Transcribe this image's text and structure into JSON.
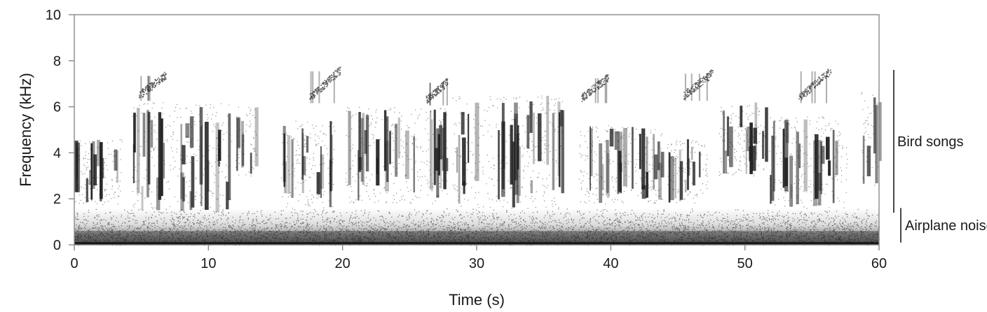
{
  "chart_data": {
    "type": "spectrogram",
    "title": "",
    "xlabel": "Time (s)",
    "ylabel": "Frequency (kHz)",
    "xlim": [
      0,
      60
    ],
    "ylim": [
      0,
      10
    ],
    "x_ticks": [
      0,
      10,
      20,
      30,
      40,
      50,
      60
    ],
    "y_ticks": [
      0,
      2,
      4,
      6,
      8,
      10
    ],
    "grid": false,
    "colormap": "grayscale (white = low energy, black = high energy)",
    "colors": {
      "ink": "#1a1a1a",
      "background": "#ffffff",
      "frame": "#888888"
    },
    "annotations": [
      {
        "label": "Bird songs",
        "y_range_khz": [
          1.4,
          7.6
        ]
      },
      {
        "label": "Airplane noise",
        "y_range_khz": [
          0.1,
          1.6
        ]
      }
    ],
    "airplane_noise": {
      "band_khz": [
        0,
        1.6
      ],
      "strongest_khz": [
        0,
        0.6
      ],
      "solid_floor_khz": [
        0,
        0.12
      ]
    },
    "song_bouts": [
      {
        "t_start": 0.0,
        "t_end": 3.6,
        "freq_khz": [
          1.7,
          4.6
        ]
      },
      {
        "t_start": 4.3,
        "t_end": 11.8,
        "freq_khz": [
          1.4,
          6.2
        ]
      },
      {
        "t_start": 12.0,
        "t_end": 13.6,
        "freq_khz": [
          3.0,
          6.0
        ]
      },
      {
        "t_start": 15.4,
        "t_end": 19.4,
        "freq_khz": [
          1.6,
          5.4
        ]
      },
      {
        "t_start": 20.2,
        "t_end": 27.8,
        "freq_khz": [
          1.8,
          6.0
        ]
      },
      {
        "t_start": 28.2,
        "t_end": 36.4,
        "freq_khz": [
          1.6,
          6.5
        ]
      },
      {
        "t_start": 37.6,
        "t_end": 43.8,
        "freq_khz": [
          1.8,
          5.2
        ]
      },
      {
        "t_start": 44.2,
        "t_end": 47.2,
        "freq_khz": [
          1.8,
          4.6
        ]
      },
      {
        "t_start": 48.0,
        "t_end": 51.6,
        "freq_khz": [
          3.0,
          6.2
        ]
      },
      {
        "t_start": 51.8,
        "t_end": 57.6,
        "freq_khz": [
          1.6,
          5.6
        ]
      },
      {
        "t_start": 58.6,
        "t_end": 60.0,
        "freq_khz": [
          2.6,
          6.8
        ]
      }
    ],
    "high_whistles": [
      {
        "t_start": 4.8,
        "t_end": 6.8,
        "freq_khz": [
          6.5,
          7.4
        ]
      },
      {
        "t_start": 17.5,
        "t_end": 19.8,
        "freq_khz": [
          6.4,
          7.6
        ]
      },
      {
        "t_start": 26.2,
        "t_end": 27.8,
        "freq_khz": [
          6.3,
          7.1
        ]
      },
      {
        "t_start": 37.8,
        "t_end": 39.8,
        "freq_khz": [
          6.4,
          7.3
        ]
      },
      {
        "t_start": 45.4,
        "t_end": 47.6,
        "freq_khz": [
          6.5,
          7.5
        ]
      },
      {
        "t_start": 54.0,
        "t_end": 56.4,
        "freq_khz": [
          6.4,
          7.6
        ]
      }
    ]
  }
}
